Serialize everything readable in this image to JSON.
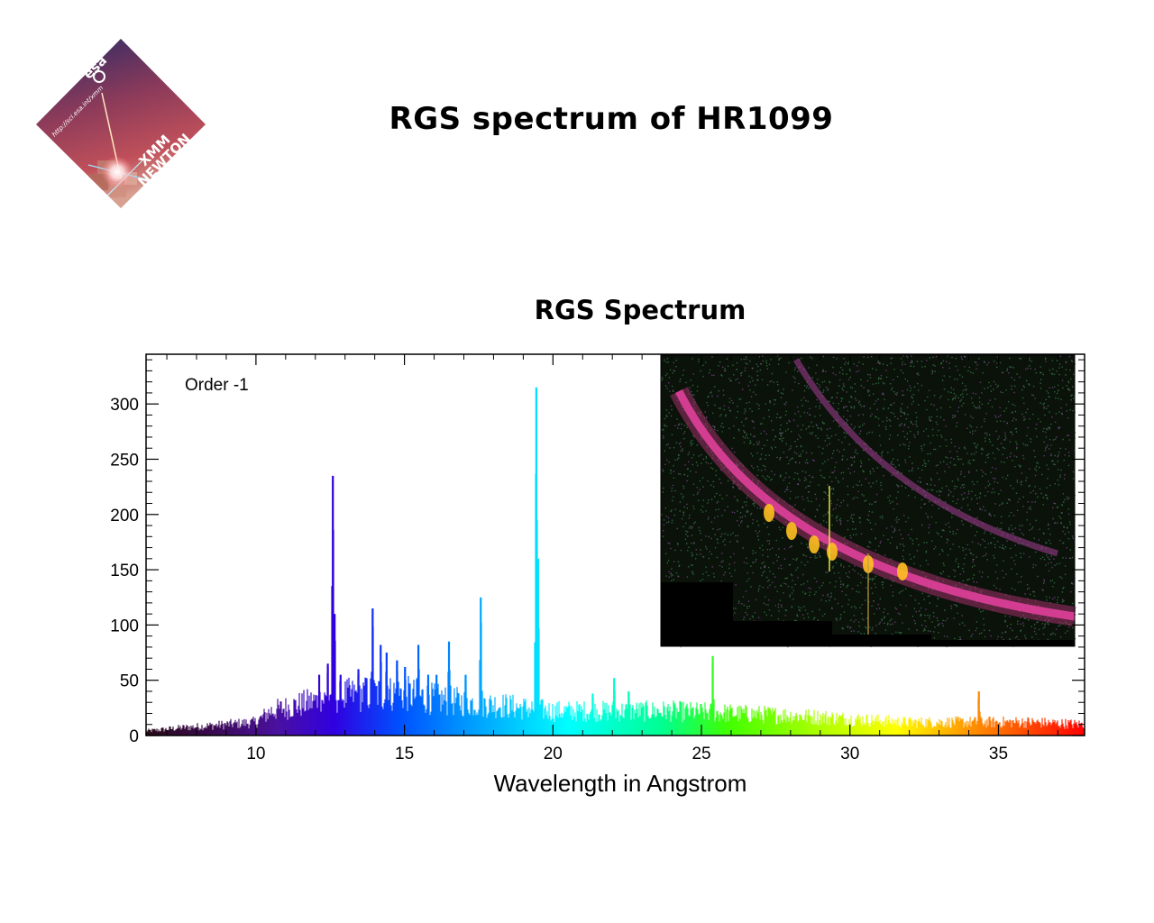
{
  "header": {
    "title": "RGS spectrum of HR1099"
  },
  "logo": {
    "agency": "esa",
    "url": "http://sci.esa.int/xmm",
    "mission_line1": "XMM",
    "mission_line2": "NEWTON"
  },
  "chart_data": {
    "type": "bar",
    "title": "RGS Spectrum",
    "xlabel": "Wavelength in Angstrom",
    "ylabel": "",
    "annotation": "Order -1",
    "xlim": [
      6.3,
      37.9
    ],
    "ylim": [
      0,
      345
    ],
    "xticks": [
      10,
      15,
      20,
      25,
      30,
      35
    ],
    "yticks": [
      0,
      50,
      100,
      150,
      200,
      250,
      300
    ],
    "grid": false,
    "colormap": "rainbow (violet to red with wavelength)",
    "continuum": [
      [
        6.3,
        4
      ],
      [
        7.5,
        7
      ],
      [
        9.0,
        10
      ],
      [
        10.0,
        12
      ],
      [
        10.5,
        22
      ],
      [
        11.5,
        28
      ],
      [
        12.3,
        33
      ],
      [
        13.0,
        36
      ],
      [
        14.0,
        38
      ],
      [
        15.0,
        38
      ],
      [
        16.0,
        33
      ],
      [
        17.0,
        30
      ],
      [
        18.0,
        28
      ],
      [
        19.0,
        25
      ],
      [
        20.0,
        22
      ],
      [
        22.0,
        22
      ],
      [
        24.0,
        22
      ],
      [
        26.0,
        20
      ],
      [
        28.0,
        18
      ],
      [
        30.0,
        15
      ],
      [
        32.0,
        12
      ],
      [
        34.0,
        12
      ],
      [
        36.0,
        12
      ],
      [
        37.9,
        10
      ]
    ],
    "lines": [
      {
        "x": 12.13,
        "y": 55
      },
      {
        "x": 12.42,
        "y": 65
      },
      {
        "x": 12.59,
        "y": 235
      },
      {
        "x": 12.65,
        "y": 110
      },
      {
        "x": 12.85,
        "y": 55
      },
      {
        "x": 13.45,
        "y": 60
      },
      {
        "x": 13.72,
        "y": 52
      },
      {
        "x": 13.93,
        "y": 115
      },
      {
        "x": 14.2,
        "y": 82
      },
      {
        "x": 14.4,
        "y": 75
      },
      {
        "x": 14.75,
        "y": 68
      },
      {
        "x": 15.02,
        "y": 62
      },
      {
        "x": 15.47,
        "y": 82
      },
      {
        "x": 15.8,
        "y": 55
      },
      {
        "x": 16.08,
        "y": 55
      },
      {
        "x": 16.5,
        "y": 85
      },
      {
        "x": 17.06,
        "y": 55
      },
      {
        "x": 17.57,
        "y": 125
      },
      {
        "x": 19.44,
        "y": 315
      },
      {
        "x": 19.5,
        "y": 160
      },
      {
        "x": 21.34,
        "y": 38
      },
      {
        "x": 22.06,
        "y": 52
      },
      {
        "x": 22.55,
        "y": 40
      },
      {
        "x": 25.38,
        "y": 72
      },
      {
        "x": 34.34,
        "y": 40
      }
    ],
    "inset": {
      "type": "heatmap",
      "description": "dispersed RGS detector image"
    }
  }
}
